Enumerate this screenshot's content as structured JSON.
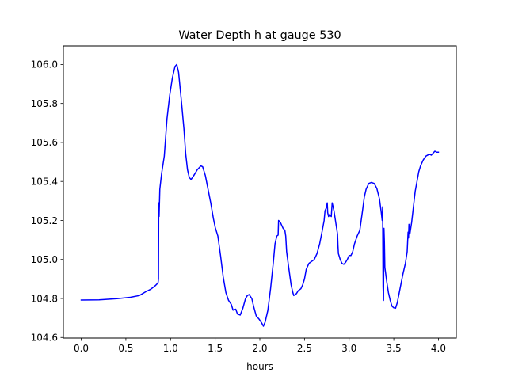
{
  "chart_data": {
    "type": "line",
    "title": "Water Depth h at gauge 530",
    "xlabel": "hours",
    "ylabel": "",
    "xlim": [
      -0.2,
      4.2
    ],
    "ylim": [
      104.597,
      106.095
    ],
    "grid": false,
    "x_ticks": [
      0.0,
      0.5,
      1.0,
      1.5,
      2.0,
      2.5,
      3.0,
      3.5,
      4.0
    ],
    "x_tick_labels": [
      "0.0",
      "0.5",
      "1.0",
      "1.5",
      "2.0",
      "2.5",
      "3.0",
      "3.5",
      "4.0"
    ],
    "y_ticks": [
      104.6,
      104.8,
      105.0,
      105.2,
      105.4,
      105.6,
      105.8,
      106.0
    ],
    "y_tick_labels": [
      "104.6",
      "104.8",
      "105.0",
      "105.2",
      "105.4",
      "105.6",
      "105.8",
      "106.0"
    ],
    "series": [
      {
        "name": "",
        "color": "#0000ff",
        "points": [
          [
            0.0,
            104.792
          ],
          [
            0.2,
            104.793
          ],
          [
            0.4,
            104.799
          ],
          [
            0.55,
            104.806
          ],
          [
            0.65,
            104.815
          ],
          [
            0.72,
            104.834
          ],
          [
            0.78,
            104.848
          ],
          [
            0.83,
            104.866
          ],
          [
            0.86,
            104.88
          ],
          [
            0.865,
            104.9
          ],
          [
            0.868,
            105.29
          ],
          [
            0.872,
            105.22
          ],
          [
            0.88,
            105.36
          ],
          [
            0.9,
            105.44
          ],
          [
            0.93,
            105.53
          ],
          [
            0.96,
            105.72
          ],
          [
            0.99,
            105.84
          ],
          [
            1.02,
            105.93
          ],
          [
            1.05,
            105.99
          ],
          [
            1.07,
            106.0
          ],
          [
            1.09,
            105.96
          ],
          [
            1.12,
            105.82
          ],
          [
            1.15,
            105.67
          ],
          [
            1.17,
            105.54
          ],
          [
            1.19,
            105.46
          ],
          [
            1.21,
            105.42
          ],
          [
            1.23,
            105.41
          ],
          [
            1.26,
            105.43
          ],
          [
            1.3,
            105.46
          ],
          [
            1.34,
            105.48
          ],
          [
            1.36,
            105.475
          ],
          [
            1.39,
            105.43
          ],
          [
            1.42,
            105.36
          ],
          [
            1.45,
            105.29
          ],
          [
            1.48,
            105.21
          ],
          [
            1.5,
            105.165
          ],
          [
            1.53,
            105.12
          ],
          [
            1.56,
            105.02
          ],
          [
            1.59,
            104.91
          ],
          [
            1.62,
            104.83
          ],
          [
            1.65,
            104.79
          ],
          [
            1.68,
            104.77
          ],
          [
            1.7,
            104.74
          ],
          [
            1.73,
            104.745
          ],
          [
            1.75,
            104.72
          ],
          [
            1.78,
            104.715
          ],
          [
            1.81,
            104.75
          ],
          [
            1.84,
            104.8
          ],
          [
            1.86,
            104.815
          ],
          [
            1.88,
            104.82
          ],
          [
            1.91,
            104.8
          ],
          [
            1.93,
            104.76
          ],
          [
            1.96,
            104.71
          ],
          [
            1.99,
            104.695
          ],
          [
            2.02,
            104.675
          ],
          [
            2.04,
            104.658
          ],
          [
            2.06,
            104.68
          ],
          [
            2.09,
            104.74
          ],
          [
            2.12,
            104.85
          ],
          [
            2.15,
            104.98
          ],
          [
            2.17,
            105.08
          ],
          [
            2.19,
            105.12
          ],
          [
            2.205,
            105.125
          ],
          [
            2.21,
            105.2
          ],
          [
            2.23,
            105.19
          ],
          [
            2.26,
            105.16
          ],
          [
            2.28,
            105.15
          ],
          [
            2.29,
            105.12
          ],
          [
            2.3,
            105.04
          ],
          [
            2.32,
            104.97
          ],
          [
            2.35,
            104.87
          ],
          [
            2.37,
            104.83
          ],
          [
            2.38,
            104.815
          ],
          [
            2.41,
            104.825
          ],
          [
            2.43,
            104.84
          ],
          [
            2.46,
            104.85
          ],
          [
            2.48,
            104.87
          ],
          [
            2.5,
            104.9
          ],
          [
            2.52,
            104.95
          ],
          [
            2.55,
            104.98
          ],
          [
            2.58,
            104.99
          ],
          [
            2.61,
            105.0
          ],
          [
            2.64,
            105.03
          ],
          [
            2.67,
            105.08
          ],
          [
            2.7,
            105.15
          ],
          [
            2.72,
            105.2
          ],
          [
            2.73,
            105.25
          ],
          [
            2.745,
            105.265
          ],
          [
            2.755,
            105.29
          ],
          [
            2.76,
            105.24
          ],
          [
            2.77,
            105.22
          ],
          [
            2.78,
            105.23
          ],
          [
            2.8,
            105.22
          ],
          [
            2.81,
            105.29
          ],
          [
            2.83,
            105.25
          ],
          [
            2.85,
            105.19
          ],
          [
            2.87,
            105.13
          ],
          [
            2.875,
            105.07
          ],
          [
            2.88,
            105.03
          ],
          [
            2.9,
            105.0
          ],
          [
            2.92,
            104.98
          ],
          [
            2.94,
            104.975
          ],
          [
            2.96,
            104.985
          ],
          [
            2.98,
            105.0
          ],
          [
            3.0,
            105.02
          ],
          [
            3.02,
            105.02
          ],
          [
            3.04,
            105.04
          ],
          [
            3.06,
            105.08
          ],
          [
            3.09,
            105.12
          ],
          [
            3.12,
            105.15
          ],
          [
            3.15,
            105.25
          ],
          [
            3.17,
            105.32
          ],
          [
            3.19,
            105.36
          ],
          [
            3.22,
            105.39
          ],
          [
            3.25,
            105.395
          ],
          [
            3.28,
            105.39
          ],
          [
            3.31,
            105.365
          ],
          [
            3.34,
            105.31
          ],
          [
            3.36,
            105.24
          ],
          [
            3.37,
            105.2
          ],
          [
            3.375,
            105.27
          ],
          [
            3.38,
            104.86
          ],
          [
            3.385,
            104.79
          ],
          [
            3.39,
            105.16
          ],
          [
            3.395,
            105.09
          ],
          [
            3.4,
            104.96
          ],
          [
            3.42,
            104.89
          ],
          [
            3.44,
            104.83
          ],
          [
            3.46,
            104.79
          ],
          [
            3.48,
            104.76
          ],
          [
            3.5,
            104.752
          ],
          [
            3.52,
            104.75
          ],
          [
            3.54,
            104.78
          ],
          [
            3.57,
            104.85
          ],
          [
            3.6,
            104.92
          ],
          [
            3.63,
            104.98
          ],
          [
            3.65,
            105.04
          ],
          [
            3.66,
            105.14
          ],
          [
            3.665,
            105.11
          ],
          [
            3.67,
            105.18
          ],
          [
            3.68,
            105.13
          ],
          [
            3.7,
            105.19
          ],
          [
            3.72,
            105.27
          ],
          [
            3.74,
            105.35
          ],
          [
            3.76,
            105.4
          ],
          [
            3.78,
            105.45
          ],
          [
            3.8,
            105.48
          ],
          [
            3.83,
            105.51
          ],
          [
            3.86,
            105.53
          ],
          [
            3.88,
            105.535
          ],
          [
            3.9,
            105.54
          ],
          [
            3.92,
            105.535
          ],
          [
            3.94,
            105.545
          ],
          [
            3.96,
            105.555
          ],
          [
            3.98,
            105.55
          ],
          [
            4.0,
            105.55
          ]
        ]
      }
    ]
  }
}
